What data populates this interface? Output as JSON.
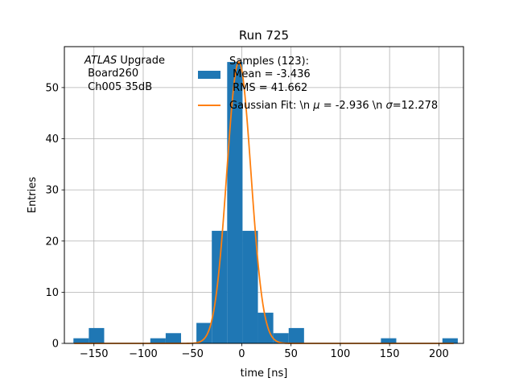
{
  "chart_data": {
    "type": "bar",
    "title": "Run 725",
    "xlabel": "time [ns]",
    "ylabel": "Entries",
    "xlim": [
      -180,
      225
    ],
    "ylim": [
      0,
      58
    ],
    "xticks": [
      -150,
      -100,
      -50,
      0,
      50,
      100,
      150,
      200
    ],
    "xtick_labels": [
      "−150",
      "−100",
      "−50",
      "0",
      "50",
      "100",
      "150",
      "200"
    ],
    "yticks": [
      0,
      10,
      20,
      30,
      40,
      50
    ],
    "ytick_labels": [
      "0",
      "10",
      "20",
      "30",
      "40",
      "50"
    ],
    "grid": true,
    "legend_position": "top-right",
    "annotation": {
      "lines": [
        "ATLAS Upgrade",
        " Board260",
        " Ch005 35dB"
      ],
      "italic_word": "ATLAS",
      "rest_of_first_line": " Upgrade"
    },
    "histogram": {
      "name": "Samples (123):",
      "legend_lines": [
        "Samples (123):",
        " Mean = -3.436",
        " RMS = 41.662"
      ],
      "color": "#1f77b4",
      "bins": [
        {
          "x0": -170.8,
          "x1": -155.2,
          "count": 1
        },
        {
          "x0": -155.2,
          "x1": -139.6,
          "count": 3
        },
        {
          "x0": -92.8,
          "x1": -77.2,
          "count": 1
        },
        {
          "x0": -77.2,
          "x1": -61.6,
          "count": 2
        },
        {
          "x0": -46.0,
          "x1": -30.4,
          "count": 4
        },
        {
          "x0": -30.4,
          "x1": -14.8,
          "count": 22
        },
        {
          "x0": -14.8,
          "x1": 0.8,
          "count": 55
        },
        {
          "x0": 0.8,
          "x1": 16.4,
          "count": 22
        },
        {
          "x0": 16.4,
          "x1": 32.0,
          "count": 6
        },
        {
          "x0": 32.0,
          "x1": 47.6,
          "count": 2
        },
        {
          "x0": 47.6,
          "x1": 63.2,
          "count": 3
        },
        {
          "x0": 141.2,
          "x1": 156.8,
          "count": 1
        },
        {
          "x0": 203.6,
          "x1": 219.2,
          "count": 1
        }
      ]
    },
    "fit": {
      "name": "Gaussian Fit: \\n μ = -2.936 \\n σ=12.278",
      "legend_prefix": "Gaussian Fit: \\n ",
      "legend_mu": "μ",
      "legend_mid": " = -2.936 \\n ",
      "legend_sigma": "σ",
      "legend_suffix": "=12.278",
      "color": "#ff7f0e",
      "amplitude": 55,
      "mu": -2.936,
      "sigma": 12.278,
      "x_range": [
        -170,
        215
      ]
    }
  }
}
